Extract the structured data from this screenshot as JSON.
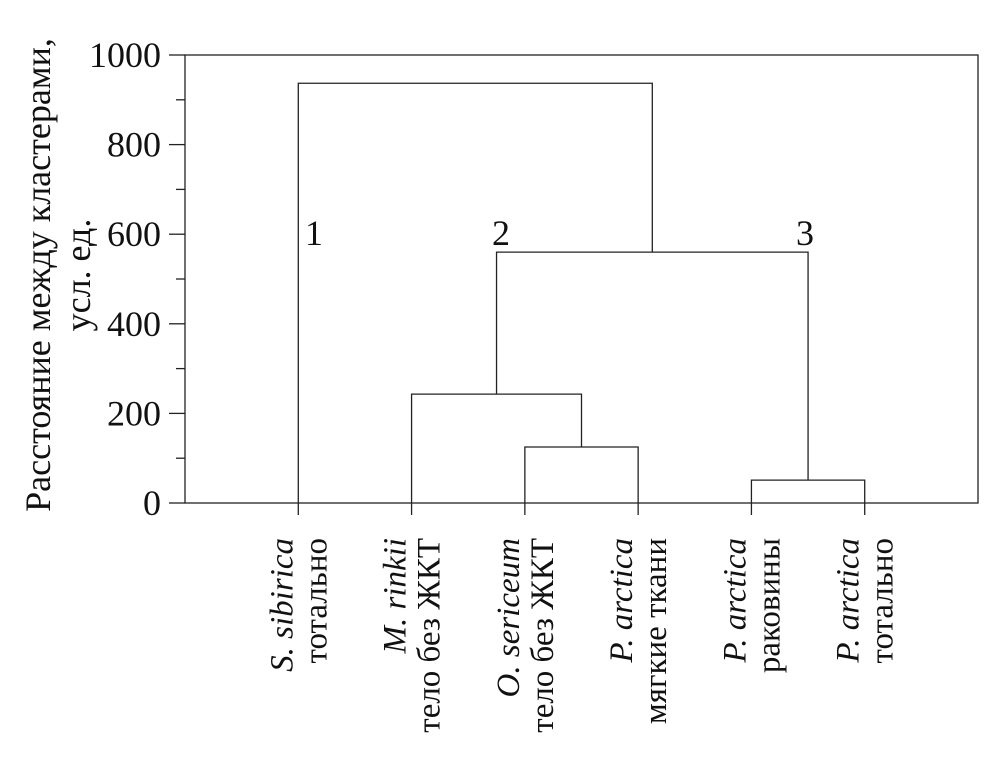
{
  "chart_data": {
    "type": "dendrogram",
    "ylabel": [
      "Расстояние между кластерами,",
      "усл. ед."
    ],
    "ylim": [
      0,
      1000
    ],
    "yticks": [
      0,
      200,
      400,
      600,
      800,
      1000
    ],
    "minor_yticks": [
      100,
      300,
      500,
      700,
      900
    ],
    "leaves": [
      {
        "species": "S. sibirica",
        "part": "тотально"
      },
      {
        "species": "M. rinkii",
        "part": "тело без ЖКТ"
      },
      {
        "species": "O. sericeum",
        "part": "тело без ЖКТ"
      },
      {
        "species": "P. arctica",
        "part": "мягкие ткани"
      },
      {
        "species": "P. arctica",
        "part": "раковины"
      },
      {
        "species": "P. arctica",
        "part": "тотально"
      }
    ],
    "tree": {
      "height": 937,
      "children": [
        {
          "leaf": 0
        },
        {
          "height": 560,
          "children": [
            {
              "height": 243,
              "children": [
                {
                  "leaf": 1
                },
                {
                  "height": 125,
                  "children": [
                    {
                      "leaf": 2
                    },
                    {
                      "leaf": 3
                    }
                  ]
                }
              ]
            },
            {
              "height": 51,
              "children": [
                {
                  "leaf": 4
                },
                {
                  "leaf": 5
                }
              ]
            }
          ]
        }
      ]
    },
    "annotations": [
      "1",
      "2",
      "3"
    ]
  }
}
